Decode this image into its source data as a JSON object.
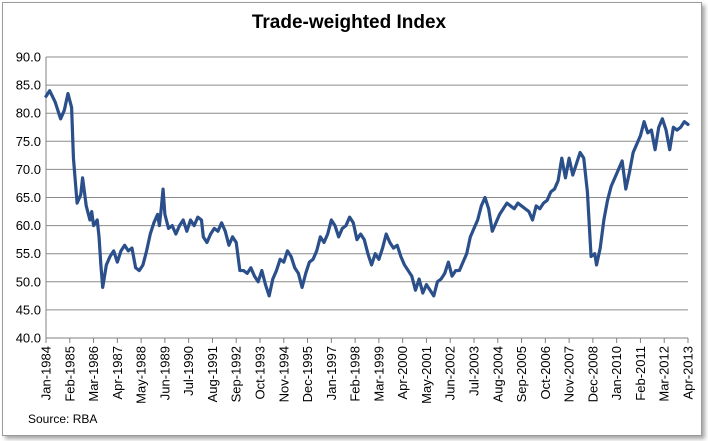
{
  "chart_data": {
    "type": "line",
    "title": "Trade-weighted Index",
    "source": "Source: RBA",
    "xlabel": "",
    "ylabel": "",
    "ylim": [
      40.0,
      90.0
    ],
    "y_ticks": [
      "40.0",
      "45.0",
      "50.0",
      "55.0",
      "60.0",
      "65.0",
      "70.0",
      "75.0",
      "80.0",
      "85.0",
      "90.0"
    ],
    "x_ticks": [
      "Jan-1984",
      "Feb-1985",
      "Mar-1986",
      "Apr-1987",
      "May-1988",
      "Jun-1989",
      "Jul-1990",
      "Aug-1991",
      "Sep-1992",
      "Oct-1993",
      "Nov-1994",
      "Dec-1995",
      "Jan-1997",
      "Feb-1998",
      "Mar-1999",
      "Apr-2000",
      "May-2001",
      "Jun-2002",
      "Jul-2003",
      "Aug-2004",
      "Sep-2005",
      "Oct-2006",
      "Nov-2007",
      "Dec-2008",
      "Jan-2010",
      "Feb-2011",
      "Mar-2012",
      "Apr-2013"
    ],
    "grid": "horizontal",
    "line_color": "#2a4f8a",
    "series": [
      {
        "name": "",
        "points": [
          [
            "1984-01",
            83.0
          ],
          [
            "1984-03",
            84.0
          ],
          [
            "1984-06",
            82.0
          ],
          [
            "1984-09",
            79.0
          ],
          [
            "1984-11",
            80.5
          ],
          [
            "1985-01",
            83.5
          ],
          [
            "1985-03",
            81.0
          ],
          [
            "1985-04",
            72.0
          ],
          [
            "1985-06",
            64.0
          ],
          [
            "1985-08",
            65.5
          ],
          [
            "1985-09",
            68.5
          ],
          [
            "1985-11",
            63.5
          ],
          [
            "1986-01",
            61.0
          ],
          [
            "1986-02",
            62.5
          ],
          [
            "1986-03",
            60.0
          ],
          [
            "1986-05",
            61.0
          ],
          [
            "1986-06",
            58.0
          ],
          [
            "1986-07",
            53.0
          ],
          [
            "1986-08",
            49.0
          ],
          [
            "1986-10",
            53.0
          ],
          [
            "1986-12",
            54.5
          ],
          [
            "1987-02",
            55.5
          ],
          [
            "1987-04",
            53.5
          ],
          [
            "1987-06",
            55.5
          ],
          [
            "1987-08",
            56.5
          ],
          [
            "1987-10",
            55.5
          ],
          [
            "1987-12",
            56.0
          ],
          [
            "1988-02",
            52.5
          ],
          [
            "1988-04",
            52.0
          ],
          [
            "1988-06",
            53.0
          ],
          [
            "1988-08",
            55.5
          ],
          [
            "1988-10",
            58.5
          ],
          [
            "1988-12",
            60.5
          ],
          [
            "1989-02",
            62.0
          ],
          [
            "1989-03",
            60.0
          ],
          [
            "1989-04",
            63.0
          ],
          [
            "1989-05",
            66.5
          ],
          [
            "1989-06",
            62.0
          ],
          [
            "1989-08",
            59.5
          ],
          [
            "1989-10",
            60.0
          ],
          [
            "1989-12",
            58.5
          ],
          [
            "1990-02",
            60.0
          ],
          [
            "1990-04",
            61.0
          ],
          [
            "1990-06",
            59.0
          ],
          [
            "1990-08",
            61.0
          ],
          [
            "1990-10",
            60.0
          ],
          [
            "1990-12",
            61.5
          ],
          [
            "1991-02",
            61.0
          ],
          [
            "1991-03",
            58.0
          ],
          [
            "1991-05",
            57.0
          ],
          [
            "1991-07",
            58.5
          ],
          [
            "1991-09",
            59.5
          ],
          [
            "1991-11",
            59.0
          ],
          [
            "1992-01",
            60.5
          ],
          [
            "1992-03",
            59.0
          ],
          [
            "1992-05",
            56.5
          ],
          [
            "1992-07",
            58.0
          ],
          [
            "1992-09",
            57.0
          ],
          [
            "1992-11",
            52.0
          ],
          [
            "1993-01",
            52.0
          ],
          [
            "1993-03",
            51.5
          ],
          [
            "1993-05",
            52.5
          ],
          [
            "1993-07",
            51.0
          ],
          [
            "1993-09",
            50.0
          ],
          [
            "1993-11",
            52.0
          ],
          [
            "1994-01",
            49.5
          ],
          [
            "1994-03",
            47.5
          ],
          [
            "1994-05",
            50.5
          ],
          [
            "1994-07",
            52.0
          ],
          [
            "1994-09",
            54.0
          ],
          [
            "1994-11",
            53.5
          ],
          [
            "1995-01",
            55.5
          ],
          [
            "1995-03",
            54.5
          ],
          [
            "1995-05",
            52.5
          ],
          [
            "1995-07",
            51.5
          ],
          [
            "1995-09",
            49.0
          ],
          [
            "1995-11",
            51.5
          ],
          [
            "1996-01",
            53.5
          ],
          [
            "1996-03",
            54.0
          ],
          [
            "1996-05",
            55.5
          ],
          [
            "1996-07",
            58.0
          ],
          [
            "1996-09",
            57.0
          ],
          [
            "1996-11",
            58.5
          ],
          [
            "1997-01",
            61.0
          ],
          [
            "1997-03",
            60.0
          ],
          [
            "1997-05",
            58.0
          ],
          [
            "1997-07",
            59.5
          ],
          [
            "1997-09",
            60.0
          ],
          [
            "1997-11",
            61.5
          ],
          [
            "1998-01",
            60.5
          ],
          [
            "1998-03",
            57.5
          ],
          [
            "1998-05",
            58.5
          ],
          [
            "1998-07",
            57.5
          ],
          [
            "1998-09",
            55.0
          ],
          [
            "1998-11",
            53.0
          ],
          [
            "1999-01",
            55.0
          ],
          [
            "1999-03",
            54.0
          ],
          [
            "1999-05",
            56.0
          ],
          [
            "1999-07",
            58.5
          ],
          [
            "1999-09",
            57.0
          ],
          [
            "1999-11",
            56.0
          ],
          [
            "2000-01",
            56.5
          ],
          [
            "2000-03",
            54.5
          ],
          [
            "2000-05",
            53.0
          ],
          [
            "2000-07",
            52.0
          ],
          [
            "2000-09",
            51.0
          ],
          [
            "2000-11",
            48.5
          ],
          [
            "2001-01",
            50.5
          ],
          [
            "2001-03",
            48.0
          ],
          [
            "2001-05",
            49.5
          ],
          [
            "2001-07",
            48.5
          ],
          [
            "2001-09",
            47.5
          ],
          [
            "2001-11",
            50.0
          ],
          [
            "2002-01",
            50.5
          ],
          [
            "2002-03",
            51.5
          ],
          [
            "2002-05",
            53.5
          ],
          [
            "2002-07",
            51.0
          ],
          [
            "2002-09",
            52.0
          ],
          [
            "2002-11",
            52.0
          ],
          [
            "2003-01",
            53.5
          ],
          [
            "2003-03",
            55.0
          ],
          [
            "2003-05",
            58.0
          ],
          [
            "2003-07",
            59.5
          ],
          [
            "2003-09",
            61.0
          ],
          [
            "2003-11",
            63.5
          ],
          [
            "2004-01",
            65.0
          ],
          [
            "2004-03",
            63.0
          ],
          [
            "2004-05",
            59.0
          ],
          [
            "2004-07",
            60.5
          ],
          [
            "2004-09",
            62.0
          ],
          [
            "2004-11",
            63.0
          ],
          [
            "2005-01",
            64.0
          ],
          [
            "2005-03",
            63.5
          ],
          [
            "2005-05",
            63.0
          ],
          [
            "2005-07",
            64.0
          ],
          [
            "2005-09",
            63.5
          ],
          [
            "2005-11",
            63.0
          ],
          [
            "2006-01",
            62.5
          ],
          [
            "2006-03",
            61.0
          ],
          [
            "2006-05",
            63.5
          ],
          [
            "2006-07",
            63.0
          ],
          [
            "2006-09",
            64.0
          ],
          [
            "2006-11",
            64.5
          ],
          [
            "2007-01",
            66.0
          ],
          [
            "2007-03",
            66.5
          ],
          [
            "2007-05",
            68.0
          ],
          [
            "2007-07",
            72.0
          ],
          [
            "2007-09",
            68.5
          ],
          [
            "2007-11",
            72.0
          ],
          [
            "2008-01",
            69.0
          ],
          [
            "2008-03",
            71.0
          ],
          [
            "2008-05",
            73.0
          ],
          [
            "2008-07",
            72.0
          ],
          [
            "2008-09",
            66.0
          ],
          [
            "2008-11",
            54.5
          ],
          [
            "2009-01",
            55.0
          ],
          [
            "2009-02",
            53.0
          ],
          [
            "2009-04",
            56.0
          ],
          [
            "2009-06",
            61.0
          ],
          [
            "2009-08",
            64.5
          ],
          [
            "2009-10",
            67.0
          ],
          [
            "2009-12",
            68.5
          ],
          [
            "2010-02",
            70.0
          ],
          [
            "2010-04",
            71.5
          ],
          [
            "2010-06",
            66.5
          ],
          [
            "2010-08",
            69.5
          ],
          [
            "2010-10",
            73.0
          ],
          [
            "2010-12",
            74.5
          ],
          [
            "2011-02",
            76.0
          ],
          [
            "2011-04",
            78.5
          ],
          [
            "2011-06",
            76.5
          ],
          [
            "2011-08",
            77.0
          ],
          [
            "2011-10",
            73.5
          ],
          [
            "2011-12",
            77.5
          ],
          [
            "2012-02",
            79.0
          ],
          [
            "2012-04",
            77.0
          ],
          [
            "2012-06",
            73.5
          ],
          [
            "2012-08",
            77.5
          ],
          [
            "2012-10",
            77.0
          ],
          [
            "2012-12",
            77.5
          ],
          [
            "2013-02",
            78.5
          ],
          [
            "2013-04",
            78.0
          ]
        ]
      }
    ]
  }
}
